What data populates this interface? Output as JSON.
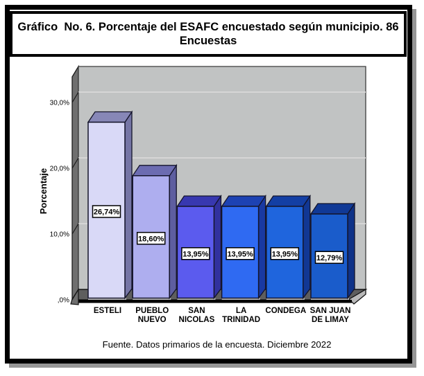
{
  "title": {
    "line1": "Gráfico  No. 6. Porcentaje del ESAFC encuestado según municipio. 86",
    "line2": "Encuestas"
  },
  "footer": "Fuente. Datos primarios de la encuesta. Diciembre 2022",
  "chart_data": {
    "type": "bar",
    "style": "3d-column",
    "categories": [
      "ESTELI",
      "PUEBLO NUEVO",
      "SAN NICOLAS",
      "LA TRINIDAD",
      "CONDEGA",
      "SAN JUAN DE LIMAY"
    ],
    "category_label_lines": [
      [
        "ESTELI"
      ],
      [
        "PUEBLO",
        "NUEVO"
      ],
      [
        "SAN",
        "NICOLAS"
      ],
      [
        "LA",
        "TRINIDAD"
      ],
      [
        "CONDEGA"
      ],
      [
        "SAN JUAN",
        "DE LIMAY"
      ]
    ],
    "values": [
      26.74,
      18.6,
      13.95,
      13.95,
      13.95,
      12.79
    ],
    "value_labels": [
      "26,74%",
      "18,60%",
      "13,95%",
      "13,95%",
      "13,95%",
      "12,79%"
    ],
    "bar_colors": [
      "#d9d9f7",
      "#aeaeef",
      "#5b5bee",
      "#2f6af2",
      "#1f65dd",
      "#1a5ccb"
    ],
    "ylabel": "Porcentaje",
    "yticks": [
      {
        "value": 0,
        "label": ",0%"
      },
      {
        "value": 10,
        "label": "10,0%"
      },
      {
        "value": 20,
        "label": "20,0%"
      },
      {
        "value": 30,
        "label": "30,0%"
      }
    ],
    "ylim": [
      0,
      33.5
    ],
    "grid": true,
    "legend": false,
    "wall_color": "#c1c3c3",
    "grid_color": "#d6d6d6",
    "side_wall_color": "#6f6f6f",
    "floor_dark_color": "#5e5e5e",
    "floor_light_color": "#b9b9b9"
  }
}
